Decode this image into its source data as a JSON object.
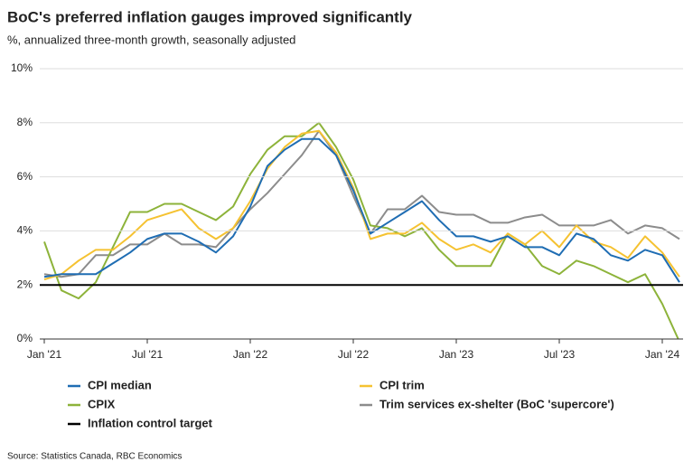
{
  "chart_data": {
    "type": "line",
    "title": "BoC's preferred inflation gauges improved significantly",
    "subtitle": "%, annualized three-month growth, seasonally adjusted",
    "source": "Source: Statistics Canada, RBC Economics",
    "x": [
      "2021-01",
      "2021-02",
      "2021-03",
      "2021-04",
      "2021-05",
      "2021-06",
      "2021-07",
      "2021-08",
      "2021-09",
      "2021-10",
      "2021-11",
      "2021-12",
      "2022-01",
      "2022-02",
      "2022-03",
      "2022-04",
      "2022-05",
      "2022-06",
      "2022-07",
      "2022-08",
      "2022-09",
      "2022-10",
      "2022-11",
      "2022-12",
      "2023-01",
      "2023-02",
      "2023-03",
      "2023-04",
      "2023-05",
      "2023-06",
      "2023-07",
      "2023-08",
      "2023-09",
      "2023-10",
      "2023-11",
      "2023-12",
      "2024-01",
      "2024-02"
    ],
    "xlim": [
      "2021-01",
      "2024-02"
    ],
    "xticks": [
      {
        "value": "2021-01",
        "label": "Jan '21"
      },
      {
        "value": "2021-07",
        "label": "Jul '21"
      },
      {
        "value": "2022-01",
        "label": "Jan '22"
      },
      {
        "value": "2022-07",
        "label": "Jul '22"
      },
      {
        "value": "2023-01",
        "label": "Jan '23"
      },
      {
        "value": "2023-07",
        "label": "Jul '23"
      },
      {
        "value": "2024-01",
        "label": "Jan '24"
      }
    ],
    "ylim": [
      0,
      10
    ],
    "yticks": [
      {
        "value": 0,
        "label": "0%"
      },
      {
        "value": 2,
        "label": "2%"
      },
      {
        "value": 4,
        "label": "4%"
      },
      {
        "value": 6,
        "label": "6%"
      },
      {
        "value": 8,
        "label": "8%"
      },
      {
        "value": 10,
        "label": "10%"
      }
    ],
    "grid": true,
    "series": [
      {
        "name": "CPI median",
        "color": "#1f6db3",
        "values": [
          2.3,
          2.4,
          2.4,
          2.4,
          2.8,
          3.2,
          3.7,
          3.9,
          3.9,
          3.6,
          3.2,
          3.8,
          4.9,
          6.4,
          7.0,
          7.4,
          7.4,
          6.8,
          5.5,
          3.9,
          4.3,
          4.7,
          5.1,
          4.4,
          3.8,
          3.8,
          3.6,
          3.8,
          3.4,
          3.4,
          3.1,
          3.9,
          3.7,
          3.1,
          2.9,
          3.3,
          3.1,
          2.1
        ]
      },
      {
        "name": "CPI trim",
        "color": "#f5c231",
        "values": [
          2.2,
          2.4,
          2.9,
          3.3,
          3.3,
          3.8,
          4.4,
          4.6,
          4.8,
          4.1,
          3.7,
          4.1,
          5.1,
          6.3,
          7.1,
          7.6,
          7.7,
          6.9,
          5.6,
          3.7,
          3.9,
          3.9,
          4.3,
          3.7,
          3.3,
          3.5,
          3.2,
          3.9,
          3.5,
          4.0,
          3.4,
          4.2,
          3.6,
          3.4,
          3.0,
          3.8,
          3.2,
          2.3
        ]
      },
      {
        "name": "CPIX",
        "color": "#8db33a",
        "values": [
          3.6,
          1.8,
          1.5,
          2.1,
          3.4,
          4.7,
          4.7,
          5.0,
          5.0,
          4.7,
          4.4,
          4.9,
          6.1,
          7.0,
          7.5,
          7.5,
          8.0,
          7.1,
          5.9,
          4.2,
          4.1,
          3.8,
          4.1,
          3.3,
          2.7,
          2.7,
          2.7,
          3.9,
          3.5,
          2.7,
          2.4,
          2.9,
          2.7,
          2.4,
          2.1,
          2.4,
          1.3,
          -0.1
        ]
      },
      {
        "name": "Trim services ex-shelter (BoC 'supercore')",
        "color": "#8c8c8c",
        "values": [
          2.4,
          2.3,
          2.4,
          3.1,
          3.1,
          3.5,
          3.5,
          3.9,
          3.5,
          3.5,
          3.4,
          4.1,
          4.8,
          5.4,
          6.1,
          6.8,
          7.7,
          6.8,
          5.3,
          3.9,
          4.8,
          4.8,
          5.3,
          4.7,
          4.6,
          4.6,
          4.3,
          4.3,
          4.5,
          4.6,
          4.2,
          4.2,
          4.2,
          4.4,
          3.9,
          4.2,
          4.1,
          3.7
        ]
      }
    ],
    "reference_line": {
      "name": "Inflation control target",
      "value": 2,
      "color": "#000000"
    }
  }
}
